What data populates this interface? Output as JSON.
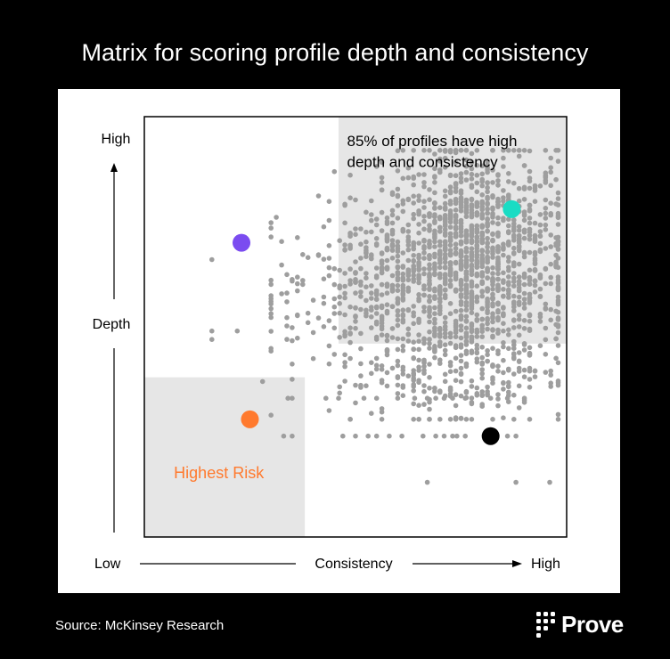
{
  "title": "Matrix for scoring profile depth and consistency",
  "source": "Source: McKinsey Research",
  "brand": {
    "name": "Prove",
    "logo_icon": "dot-grid-icon"
  },
  "colors": {
    "background": "#000000",
    "card": "#ffffff",
    "region": "#e6e6e6",
    "cloud": "#9e9e9e",
    "purple": "#7b4cf0",
    "teal": "#19dcc4",
    "orange": "#ff7a2e",
    "black": "#000000",
    "risk_text": "#ff7a2e"
  },
  "chart_data": {
    "type": "scatter",
    "title": "Matrix for scoring profile depth and consistency",
    "xlabel": "Consistency",
    "ylabel": "Depth",
    "x_low_label": "Low",
    "x_high_label": "High",
    "y_high_label": "High",
    "xlim": [
      0,
      1
    ],
    "ylim": [
      0,
      1
    ],
    "annotations": {
      "high_depth_consistency": "85% of profiles have high depth and consistency",
      "highest_risk": "Highest Risk"
    },
    "regions": [
      {
        "name": "high-depth-high-consistency",
        "x": [
          0.46,
          1.0
        ],
        "y": [
          0.46,
          1.0
        ]
      },
      {
        "name": "highest-risk",
        "x": [
          0.0,
          0.38
        ],
        "y": [
          0.0,
          0.38
        ]
      }
    ],
    "highlighted_points": [
      {
        "name": "purple",
        "color": "#7b4cf0",
        "x": 0.23,
        "y": 0.7
      },
      {
        "name": "teal",
        "color": "#19dcc4",
        "x": 0.87,
        "y": 0.78
      },
      {
        "name": "orange",
        "color": "#ff7a2e",
        "x": 0.25,
        "y": 0.28
      },
      {
        "name": "black",
        "color": "#000000",
        "x": 0.82,
        "y": 0.24
      }
    ],
    "point_cloud": {
      "color": "#9e9e9e",
      "description": "Dense cluster at high depth and high consistency with sparse scatter toward lower values",
      "clusters": [
        {
          "cx": 0.79,
          "cy": 0.65,
          "sx": 0.11,
          "sy": 0.14,
          "n": 1200
        },
        {
          "cx": 0.6,
          "cy": 0.62,
          "sx": 0.1,
          "sy": 0.1,
          "n": 350
        },
        {
          "cx": 0.42,
          "cy": 0.57,
          "sx": 0.12,
          "sy": 0.09,
          "n": 80
        },
        {
          "cx": 0.72,
          "cy": 0.38,
          "sx": 0.14,
          "sy": 0.06,
          "n": 160
        }
      ],
      "row_points": [
        {
          "y": 0.24,
          "x": [
            0.47,
            0.5,
            0.53,
            0.55,
            0.58,
            0.61,
            0.66,
            0.69,
            0.71,
            0.73,
            0.74,
            0.76,
            0.86,
            0.88
          ]
        },
        {
          "y": 0.33,
          "x": [
            0.34,
            0.35,
            0.43,
            0.46,
            0.52,
            0.55,
            0.6,
            0.64,
            0.67,
            0.69,
            0.71,
            0.73,
            0.76,
            0.82,
            0.86,
            0.9
          ]
        },
        {
          "y": 0.13,
          "x": [
            0.67,
            0.88,
            0.96
          ]
        },
        {
          "y": 0.24,
          "x": [
            0.33,
            0.35
          ]
        },
        {
          "y": 0.37,
          "x": [
            0.28
          ]
        },
        {
          "y": 0.49,
          "x": [
            0.16,
            0.22
          ]
        },
        {
          "y": 0.47,
          "x": [
            0.16
          ]
        },
        {
          "y": 0.66,
          "x": [
            0.16
          ]
        }
      ]
    }
  }
}
